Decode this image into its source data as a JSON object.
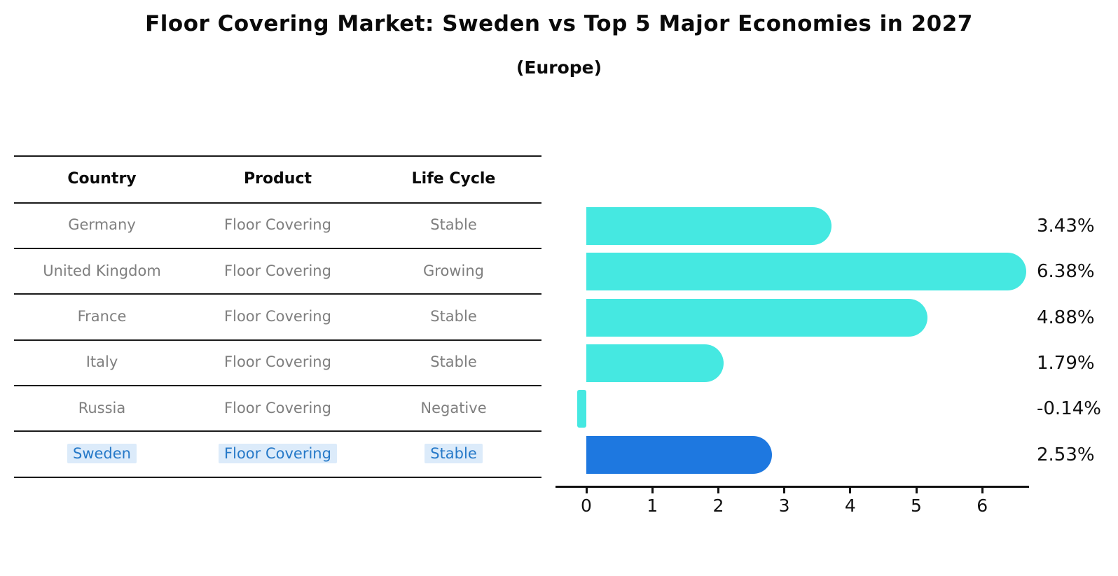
{
  "title": "Floor Covering Market: Sweden vs Top 5 Major Economies in 2027",
  "subtitle": "(Europe)",
  "colors": {
    "bar": "#45e8e1",
    "highlight_bar": "#1e78e0",
    "highlight_text": "#2679c8",
    "highlight_bg": "#dcebfa",
    "row_text": "#7f7f7f",
    "header_text": "#0a0a0a",
    "axis": "#111111"
  },
  "table": {
    "headers": [
      "Country",
      "Product",
      "Life Cycle"
    ],
    "rows": [
      {
        "country": "Germany",
        "product": "Floor Covering",
        "life_cycle": "Stable",
        "highlight": false
      },
      {
        "country": "United Kingdom",
        "product": "Floor Covering",
        "life_cycle": "Growing",
        "highlight": false
      },
      {
        "country": "France",
        "product": "Floor Covering",
        "life_cycle": "Stable",
        "highlight": false
      },
      {
        "country": "Italy",
        "product": "Floor Covering",
        "life_cycle": "Stable",
        "highlight": false
      },
      {
        "country": "Russia",
        "product": "Floor Covering",
        "life_cycle": "Negative",
        "highlight": false
      },
      {
        "country": "Sweden",
        "product": "Floor Covering",
        "life_cycle": "Stable",
        "highlight": true
      }
    ]
  },
  "chart_data": {
    "type": "bar",
    "orientation": "horizontal",
    "title": "Floor Covering Market: Sweden vs Top 5 Major Economies in 2027",
    "subtitle": "(Europe)",
    "categories": [
      "Germany",
      "United Kingdom",
      "France",
      "Italy",
      "Russia",
      "Sweden"
    ],
    "values": [
      3.43,
      6.38,
      4.88,
      1.79,
      -0.14,
      2.53
    ],
    "value_labels": [
      "3.43%",
      "6.38%",
      "4.88%",
      "1.79%",
      "-0.14%",
      "2.53%"
    ],
    "highlight_category": "Sweden",
    "xlabel": "",
    "ylabel": "",
    "xlim": [
      -0.47,
      6.72
    ],
    "xticks": [
      0,
      1,
      2,
      3,
      4,
      5,
      6
    ],
    "grid": false,
    "legend": null
  }
}
